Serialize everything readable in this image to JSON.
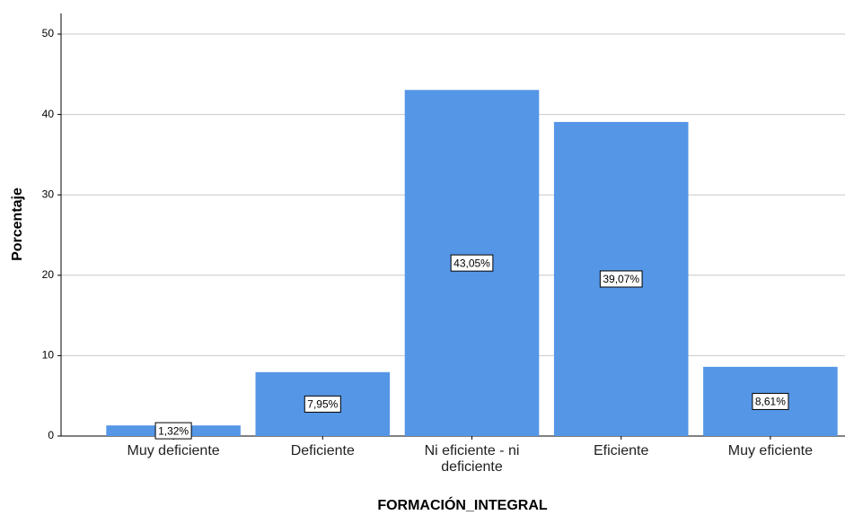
{
  "chart_data": {
    "type": "bar",
    "categories": [
      "Muy deficiente",
      "Deficiente",
      "Ni eficiente - ni deficiente",
      "Eficiente",
      "Muy eficiente"
    ],
    "values": [
      1.32,
      7.95,
      43.05,
      39.07,
      8.61
    ],
    "value_labels": [
      "1,32%",
      "7,95%",
      "43,05%",
      "39,07%",
      "8,61%"
    ],
    "color": "#5596e6",
    "x_label": "FORMACIÓN_INTEGRAL",
    "y_label": "Porcentaje",
    "ylim": [
      0,
      50
    ],
    "yticks": [
      0,
      10,
      20,
      30,
      40,
      50
    ],
    "grid": true
  }
}
